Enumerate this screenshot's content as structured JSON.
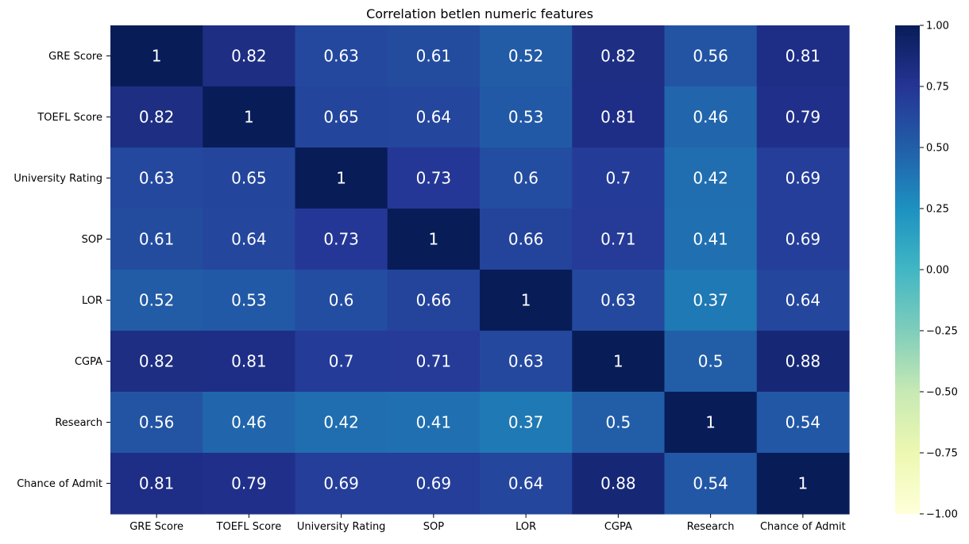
{
  "chart_data": {
    "type": "heatmap",
    "title": "Correlation betlen numeric features",
    "xlabel": "",
    "ylabel": "",
    "row_labels": [
      "GRE Score",
      "TOEFL Score",
      "University Rating",
      "SOP",
      "LOR ",
      "CGPA",
      "Research",
      "Chance of Admit "
    ],
    "col_labels": [
      "GRE Score",
      "TOEFL Score",
      "University Rating",
      "SOP",
      "LOR ",
      "CGPA",
      "Research",
      "Chance of Admit "
    ],
    "values": [
      [
        1,
        0.82,
        0.63,
        0.61,
        0.52,
        0.82,
        0.56,
        0.81
      ],
      [
        0.82,
        1,
        0.65,
        0.64,
        0.53,
        0.81,
        0.46,
        0.79
      ],
      [
        0.63,
        0.65,
        1,
        0.73,
        0.6,
        0.7,
        0.42,
        0.69
      ],
      [
        0.61,
        0.64,
        0.73,
        1,
        0.66,
        0.71,
        0.41,
        0.69
      ],
      [
        0.52,
        0.53,
        0.6,
        0.66,
        1,
        0.63,
        0.37,
        0.64
      ],
      [
        0.82,
        0.81,
        0.7,
        0.71,
        0.63,
        1,
        0.5,
        0.88
      ],
      [
        0.56,
        0.46,
        0.42,
        0.41,
        0.37,
        0.5,
        1,
        0.54
      ],
      [
        0.81,
        0.79,
        0.69,
        0.69,
        0.64,
        0.88,
        0.54,
        1
      ]
    ],
    "vmin": -1,
    "vmax": 1,
    "colormap": "YlGnBu",
    "colorbar_ticks": [
      "1.00",
      "0.75",
      "0.50",
      "0.25",
      "0.00",
      "−0.25",
      "−0.50",
      "−0.75",
      "−1.00"
    ],
    "colorbar_tick_values": [
      1,
      0.75,
      0.5,
      0.25,
      0,
      -0.25,
      -0.5,
      -0.75,
      -1
    ],
    "annotation_color": "#ffffff"
  }
}
